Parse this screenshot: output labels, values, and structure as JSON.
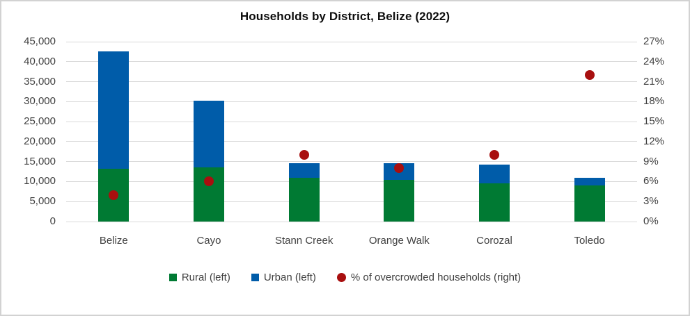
{
  "title": "Households by District, Belize (2022)",
  "colors": {
    "rural_green": "#007A33",
    "urban_blue": "#005CA9",
    "overcrowded_red": "#A80F0F",
    "gridline": "#D9D9D9",
    "axis_text": "#3F3F3F",
    "border": "#D2D2D2"
  },
  "chart_data": {
    "type": "bar",
    "subtype": "stacked-bars-with-scatter-overlay",
    "title": "Households by District, Belize (2022)",
    "categories": [
      "Belize",
      "Cayo",
      "Stann Creek",
      "Orange Walk",
      "Corozal",
      "Toledo"
    ],
    "series": [
      {
        "name": "Rural (left)",
        "type": "bar",
        "stack": "households",
        "axis": "left",
        "color": "#007A33",
        "values": [
          13200,
          13500,
          10900,
          10500,
          9600,
          9100
        ]
      },
      {
        "name": "Urban (left)",
        "type": "bar",
        "stack": "households",
        "axis": "left",
        "color": "#005CA9",
        "values": [
          29300,
          16700,
          3700,
          4100,
          4600,
          1900
        ]
      },
      {
        "name": "% of overcrowded households (right)",
        "type": "scatter",
        "axis": "right",
        "color": "#A80F0F",
        "values": [
          4,
          6,
          10,
          8,
          10,
          22
        ]
      }
    ],
    "left_axis": {
      "min": 0,
      "max": 45000,
      "step": 5000,
      "ticks": [
        "0",
        "5,000",
        "10,000",
        "15,000",
        "20,000",
        "25,000",
        "30,000",
        "35,000",
        "40,000",
        "45,000"
      ]
    },
    "right_axis": {
      "min": 0,
      "max": 27,
      "step": 3,
      "ticks": [
        "0%",
        "3%",
        "6%",
        "9%",
        "12%",
        "15%",
        "18%",
        "21%",
        "24%",
        "27%"
      ]
    },
    "grid": true,
    "legend_position": "bottom"
  },
  "legend": {
    "items": [
      {
        "label": "Rural (left)",
        "marker": "square",
        "color": "#007A33"
      },
      {
        "label": "Urban (left)",
        "marker": "square",
        "color": "#005CA9"
      },
      {
        "label": "% of overcrowded households (right)",
        "marker": "circle",
        "color": "#A80F0F"
      }
    ]
  }
}
